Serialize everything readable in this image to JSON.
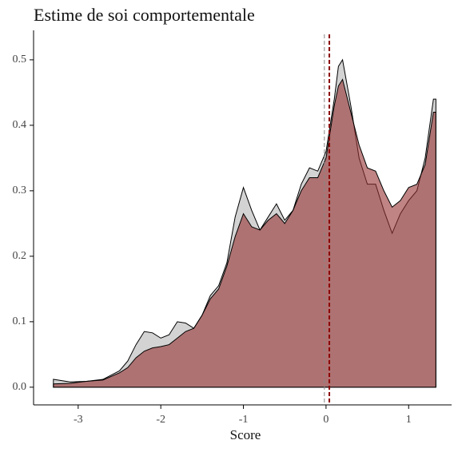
{
  "chart_data": {
    "type": "density",
    "title": "Estime de soi comportementale",
    "x_label": "Score",
    "x": [
      -3.3,
      -3.1,
      -2.9,
      -2.7,
      -2.5,
      -2.4,
      -2.3,
      -2.2,
      -2.1,
      -2.0,
      -1.9,
      -1.8,
      -1.7,
      -1.6,
      -1.5,
      -1.4,
      -1.3,
      -1.2,
      -1.1,
      -1.0,
      -0.9,
      -0.8,
      -0.7,
      -0.6,
      -0.5,
      -0.4,
      -0.3,
      -0.2,
      -0.1,
      0.0,
      0.1,
      0.15,
      0.2,
      0.3,
      0.4,
      0.5,
      0.6,
      0.7,
      0.8,
      0.9,
      1.0,
      1.1,
      1.2,
      1.3,
      1.33
    ],
    "series": [
      {
        "color": "#d3d3d3",
        "mean": -0.02,
        "values": [
          0.012,
          0.008,
          0.009,
          0.012,
          0.025,
          0.04,
          0.065,
          0.085,
          0.083,
          0.075,
          0.08,
          0.1,
          0.098,
          0.09,
          0.11,
          0.14,
          0.155,
          0.19,
          0.26,
          0.305,
          0.27,
          0.24,
          0.26,
          0.28,
          0.255,
          0.27,
          0.31,
          0.335,
          0.33,
          0.36,
          0.44,
          0.49,
          0.5,
          0.43,
          0.35,
          0.31,
          0.31,
          0.27,
          0.235,
          0.265,
          0.285,
          0.3,
          0.35,
          0.44,
          0.44
        ]
      },
      {
        "color": "#963232",
        "mean": 0.04,
        "values": [
          0.005,
          0.006,
          0.009,
          0.011,
          0.022,
          0.03,
          0.045,
          0.055,
          0.06,
          0.062,
          0.065,
          0.075,
          0.085,
          0.09,
          0.11,
          0.135,
          0.15,
          0.185,
          0.23,
          0.265,
          0.245,
          0.24,
          0.255,
          0.265,
          0.25,
          0.27,
          0.3,
          0.32,
          0.32,
          0.35,
          0.43,
          0.46,
          0.47,
          0.42,
          0.37,
          0.335,
          0.33,
          0.3,
          0.275,
          0.285,
          0.305,
          0.31,
          0.34,
          0.42,
          0.42
        ]
      }
    ],
    "xlim": [
      -3.54,
      1.52
    ],
    "ylim": [
      -0.027,
      0.545
    ],
    "xticks": [
      -3,
      -2,
      -1,
      0,
      1
    ],
    "yticks": [
      {
        "value": 0,
        "label": "0.0"
      },
      0.1,
      0.2,
      0.3,
      0.4,
      0.5
    ]
  }
}
